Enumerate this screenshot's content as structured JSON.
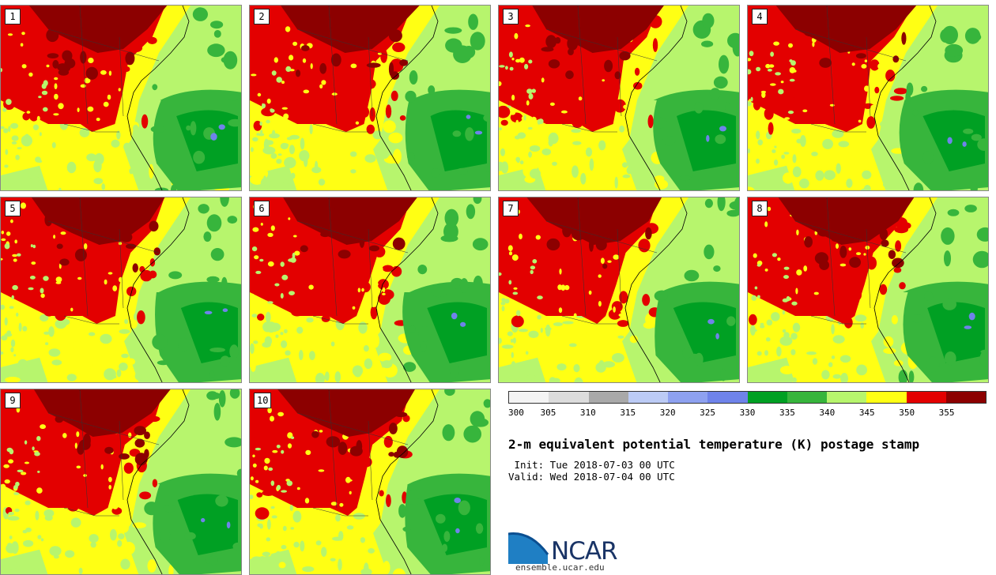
{
  "members": [
    "1",
    "2",
    "3",
    "4",
    "5",
    "6",
    "7",
    "8",
    "9",
    "10"
  ],
  "colorbar": {
    "colors": [
      "#f4f4f4",
      "#dcdcdc",
      "#a9a9a9",
      "#bccbf5",
      "#8ea1f0",
      "#6f83ea",
      "#00a023",
      "#37b53c",
      "#b7f56d",
      "#ffff14",
      "#e30000",
      "#8c0000"
    ],
    "ticks": [
      "300",
      "305",
      "310",
      "315",
      "320",
      "325",
      "330",
      "335",
      "340",
      "345",
      "350",
      "355"
    ]
  },
  "title": "2-m equivalent potential temperature (K) postage stamp",
  "init": " Init: Tue 2018-07-03 00 UTC",
  "valid": "Valid: Wed 2018-07-04 00 UTC",
  "logo": {
    "text": "NCAR",
    "site": "ensemble.ucar.edu"
  }
}
